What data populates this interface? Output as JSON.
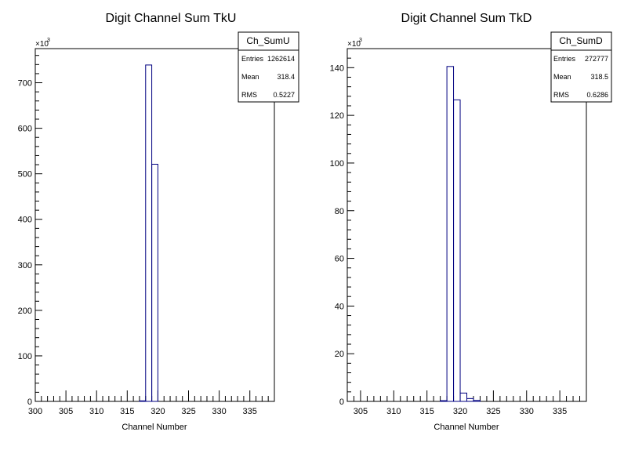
{
  "chart_data": [
    {
      "type": "bar",
      "histogram_name": "Ch_SumU",
      "title": "Digit Channel Sum TkU",
      "xlabel": "Channel Number",
      "ylabel": "",
      "xlim": [
        300,
        339
      ],
      "ylim": [
        0,
        775
      ],
      "x_ticks": [
        "300",
        "305",
        "310",
        "315",
        "320",
        "325",
        "330",
        "335"
      ],
      "y_ticks": [
        "0",
        "100",
        "200",
        "300",
        "400",
        "500",
        "600",
        "700"
      ],
      "y_multiplier": "×10",
      "y_multiplier_exp": "3",
      "bins": [
        {
          "x": 317,
          "value": 1.2
        },
        {
          "x": 318,
          "value": 739
        },
        {
          "x": 319,
          "value": 521
        }
      ],
      "stats": {
        "name": "Ch_SumU",
        "entries_label": "Entries",
        "entries": "1262614",
        "mean_label": "Mean",
        "mean": "318.4",
        "rms_label": "RMS",
        "rms": "0.5227"
      },
      "line_color": "#000080"
    },
    {
      "type": "bar",
      "histogram_name": "Ch_SumD",
      "title": "Digit Channel Sum TkD",
      "xlabel": "Channel Number",
      "ylabel": "",
      "xlim": [
        303,
        339
      ],
      "ylim": [
        0,
        148
      ],
      "x_ticks": [
        "305",
        "310",
        "315",
        "320",
        "325",
        "330",
        "335"
      ],
      "y_ticks": [
        "0",
        "20",
        "40",
        "60",
        "80",
        "100",
        "120",
        "140"
      ],
      "y_multiplier": "×10",
      "y_multiplier_exp": "3",
      "bins": [
        {
          "x": 317,
          "value": 0.3
        },
        {
          "x": 318,
          "value": 140.5
        },
        {
          "x": 319,
          "value": 126.5
        },
        {
          "x": 320,
          "value": 3.5
        },
        {
          "x": 321,
          "value": 1.2
        },
        {
          "x": 322,
          "value": 0.4
        }
      ],
      "stats": {
        "name": "Ch_SumD",
        "entries_label": "Entries",
        "entries": "272777",
        "mean_label": "Mean",
        "mean": "318.5",
        "rms_label": "RMS",
        "rms": "0.6286"
      },
      "line_color": "#000080"
    }
  ]
}
